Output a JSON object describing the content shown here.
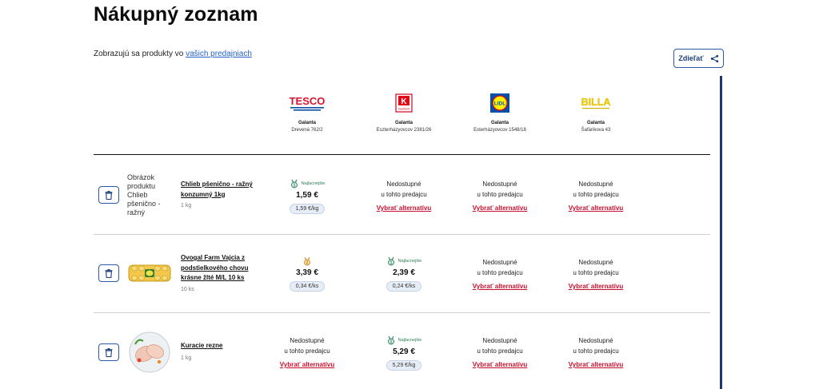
{
  "title": "Nákupný zoznam",
  "store_note": {
    "prefix": "Zobrazujú sa produkty vo ",
    "link": "vašich predajniach"
  },
  "share": {
    "label": "Zdieľať"
  },
  "stores": [
    {
      "logo": "TESCO",
      "city": "Galanta",
      "address": "Drevená 762/2"
    },
    {
      "logo": "Kaufland",
      "city": "Galanta",
      "address": "Eszterházyovcov 2381/26"
    },
    {
      "logo": "LIDL",
      "city": "Galanta",
      "address": "Esterházyovcov 1548/18"
    },
    {
      "logo": "BILLA",
      "city": "Galanta",
      "address": "Šafárikova 43"
    }
  ],
  "labels": {
    "cheapest": "Najlacnejšie",
    "na_line1": "Nedostupné",
    "na_line2": "u tohto predajcu",
    "alternative": "Vybrať alternatívu"
  },
  "products": [
    {
      "name": "Chlieb pšenično - ražný konzumný 1kg",
      "qty": "1 kg",
      "img_alt": "Obrázok produktu Chlieb pšenično - ražný",
      "offers": [
        {
          "available": true,
          "cheapest": true,
          "price": "1,59 €",
          "unit": "1,59 €/kg"
        },
        {
          "available": false
        },
        {
          "available": false
        },
        {
          "available": false
        }
      ]
    },
    {
      "name": "Ovogal Farm Vajcia z podstielkového chovu krásne žlté M/L 10 ks",
      "qty": "10 ks",
      "offers": [
        {
          "available": true,
          "cheapest": false,
          "price": "3,39 €",
          "unit": "0,34 €/ks"
        },
        {
          "available": true,
          "cheapest": true,
          "price": "2,39 €",
          "unit": "0,24 €/ks"
        },
        {
          "available": false
        },
        {
          "available": false
        }
      ]
    },
    {
      "name": "Kuracie rezne",
      "qty": "1 kg",
      "offers": [
        {
          "available": false
        },
        {
          "available": true,
          "cheapest": true,
          "price": "5,29 €",
          "unit": "5,29 €/kg"
        },
        {
          "available": false
        },
        {
          "available": false
        }
      ]
    }
  ],
  "colors": {
    "accent": "#2a5aa8",
    "alert": "#c8102e",
    "green": "#2e7d5b"
  }
}
